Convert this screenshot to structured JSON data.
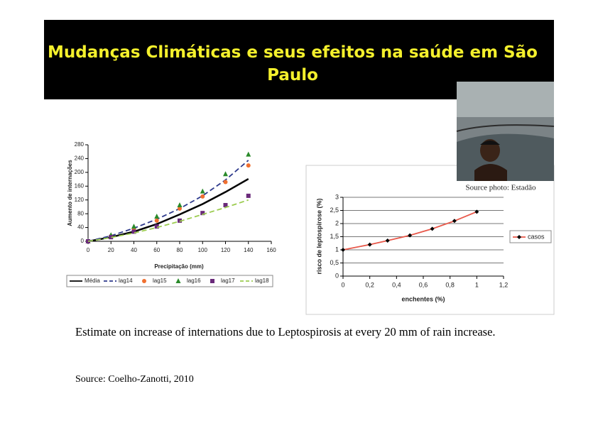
{
  "slide": {
    "title": "Mudanças Climáticas e seus efeitos na saúde em São Paulo",
    "photo_caption": "Source photo: Estadão",
    "caption": "Estimate on increase of internations due to Leptospirosis at every 20 mm of rain increase.",
    "source": "Source: Coelho-Zanotti, 2010"
  },
  "chart_data": [
    {
      "type": "line",
      "x_label": "Precipitação (mm)",
      "y_label": "Aumento de internações",
      "x": [
        0,
        20,
        40,
        60,
        80,
        100,
        120,
        140
      ],
      "xlim": [
        0,
        160
      ],
      "xticks": [
        0,
        20,
        40,
        60,
        80,
        100,
        120,
        140,
        160
      ],
      "ylim": [
        0,
        280
      ],
      "yticks": [
        0,
        40,
        80,
        120,
        160,
        200,
        240,
        280
      ],
      "grid": false,
      "legend": "bottom",
      "series": [
        {
          "name": "Média",
          "color": "#000000",
          "line": "solid",
          "marker": "none",
          "values": [
            0,
            12,
            28,
            50,
            78,
            108,
            143,
            181
          ]
        },
        {
          "name": "lag14",
          "color": "#2e3a8c",
          "line": "dashed",
          "marker": "none",
          "values": [
            0,
            16,
            38,
            64,
            95,
            132,
            178,
            235
          ]
        },
        {
          "name": "lag15",
          "color": "#f07030",
          "line": "none",
          "marker": "circle",
          "values": [
            0,
            15,
            36,
            60,
            95,
            130,
            172,
            220
          ]
        },
        {
          "name": "lag16",
          "color": "#2a8a2a",
          "line": "none",
          "marker": "triangle",
          "values": [
            0,
            18,
            43,
            72,
            105,
            145,
            195,
            252
          ]
        },
        {
          "name": "lag17",
          "color": "#6a2a7a",
          "line": "none",
          "marker": "square",
          "values": [
            0,
            12,
            28,
            43,
            60,
            82,
            105,
            132
          ]
        },
        {
          "name": "lag18",
          "color": "#9ccc50",
          "line": "dashed",
          "marker": "none",
          "values": [
            0,
            11,
            24,
            40,
            58,
            78,
            98,
            120
          ]
        }
      ]
    },
    {
      "type": "line",
      "x_label": "enchentes (%)",
      "y_label": "risco de leptospirose (%)",
      "x": [
        0,
        0.2,
        0.333,
        0.5,
        0.667,
        0.833,
        1
      ],
      "xlim": [
        0,
        1.2
      ],
      "xticks": [
        0,
        {
          "value": 0.2,
          "label": "0,2"
        },
        {
          "value": 0.4,
          "label": "0,4"
        },
        {
          "value": 0.6,
          "label": "0,6"
        },
        {
          "value": 0.8,
          "label": "0,8"
        },
        1,
        {
          "value": 1.2,
          "label": "1,2"
        }
      ],
      "ylim": [
        0,
        3
      ],
      "yticks": [
        0,
        {
          "value": 0.5,
          "label": "0,5"
        },
        1,
        {
          "value": 1.5,
          "label": "1,5"
        },
        2,
        {
          "value": 2.5,
          "label": "2,5"
        },
        3
      ],
      "grid": true,
      "legend": "right",
      "series": [
        {
          "name": "casos",
          "color": "#e8584a",
          "line": "solid",
          "marker": "diamond",
          "values": [
            1,
            1.2,
            1.35,
            1.55,
            1.8,
            2.1,
            2.45
          ]
        }
      ]
    }
  ]
}
